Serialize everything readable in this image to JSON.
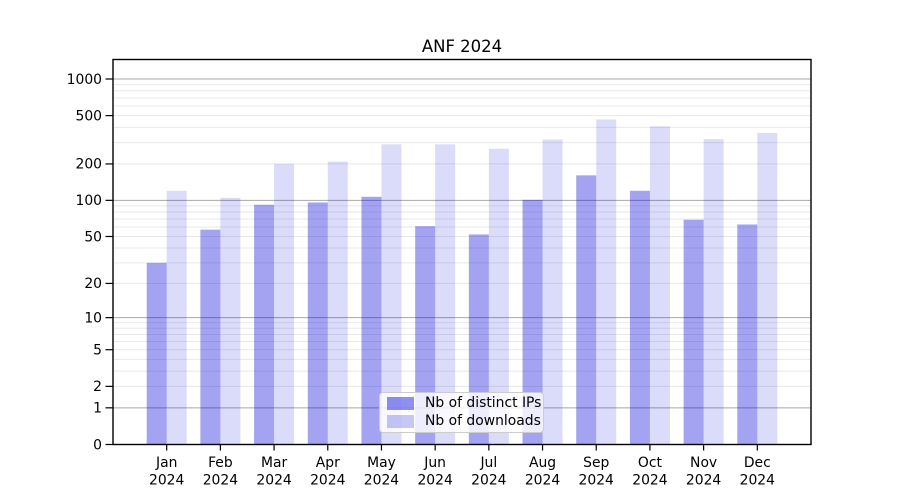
{
  "chart_data": {
    "type": "bar",
    "title": "ANF 2024",
    "categories": [
      "Jan 2024",
      "Feb 2024",
      "Mar 2024",
      "Apr 2024",
      "May 2024",
      "Jun 2024",
      "Jul 2024",
      "Aug 2024",
      "Sep 2024",
      "Oct 2024",
      "Nov 2024",
      "Dec 2024"
    ],
    "series": [
      {
        "name": "Nb of distinct IPs",
        "key": "distinct-ips",
        "color": "#0000dc",
        "opacity": 0.36,
        "values": [
          30,
          57,
          92,
          96,
          107,
          61,
          52,
          101,
          161,
          120,
          69,
          63
        ]
      },
      {
        "name": "Nb of downloads",
        "key": "downloads",
        "color": "#0000dc",
        "opacity": 0.14,
        "values": [
          120,
          105,
          200,
          209,
          290,
          290,
          267,
          318,
          465,
          408,
          320,
          360
        ]
      }
    ],
    "yscale": "log1p",
    "y_ticks": [
      0,
      1,
      2,
      5,
      10,
      20,
      50,
      100,
      200,
      500,
      1000
    ],
    "ylim": [
      0,
      1430
    ],
    "grid": {
      "major_lines": [
        1,
        10,
        100,
        1000
      ],
      "minor_lines": "2-9 of each decade up to 1000",
      "major_color": "#a8a8a8",
      "minor_color": "#e9e9e9"
    },
    "legend_position": "lower center",
    "axis_color": "#000000"
  }
}
